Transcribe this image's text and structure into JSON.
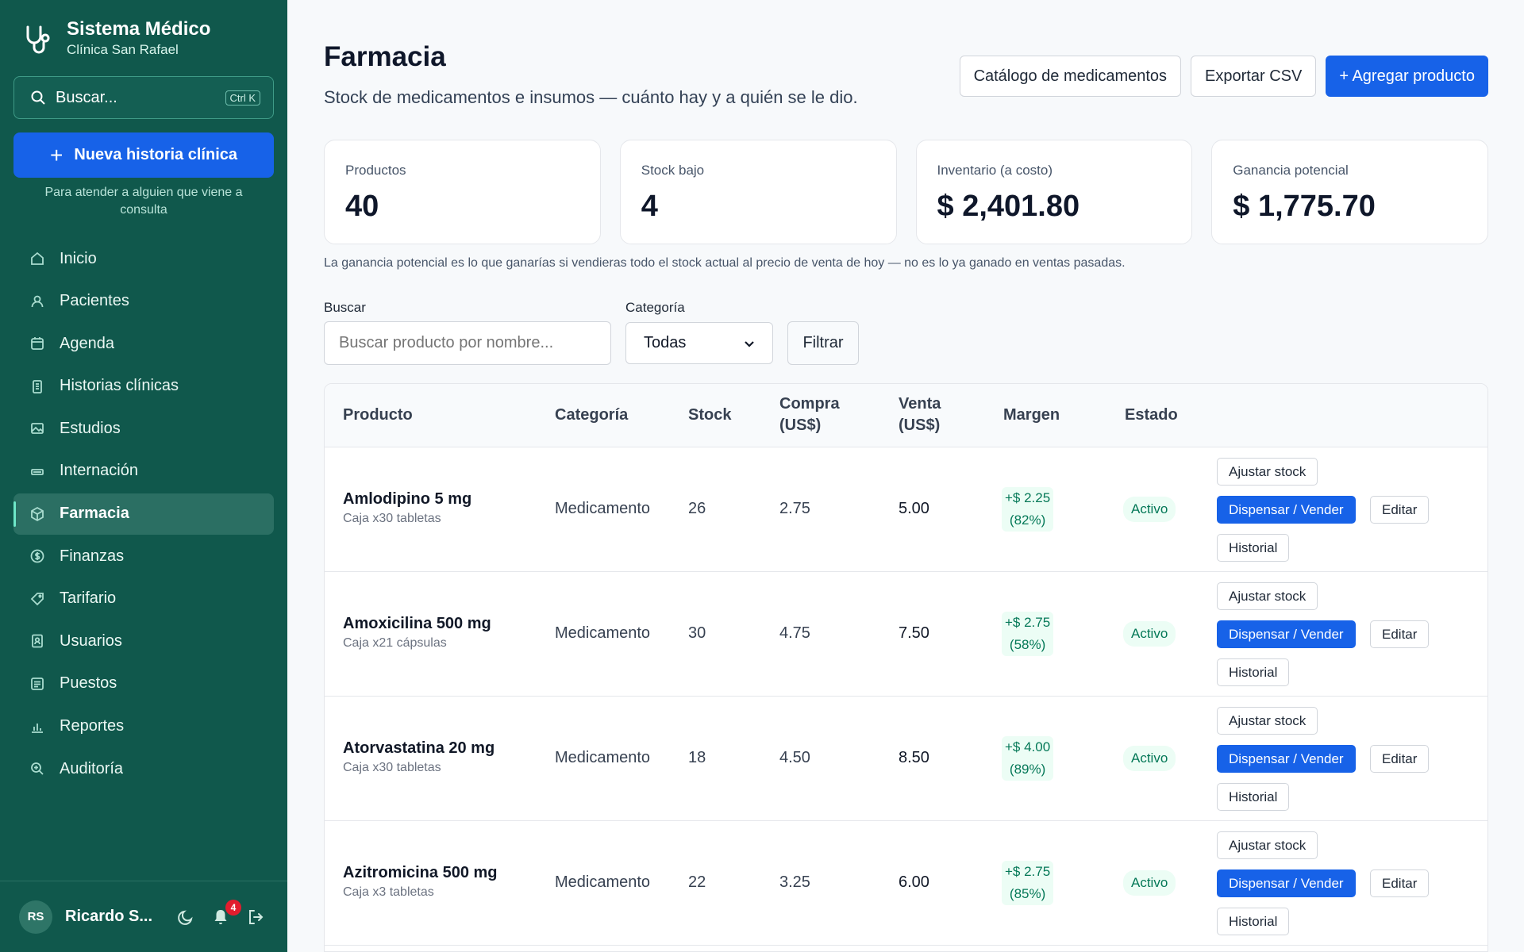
{
  "brand": {
    "title": "Sistema Médico",
    "subtitle": "Clínica San Rafael"
  },
  "sidebar_search": {
    "label": "Buscar...",
    "shortcut": "Ctrl K"
  },
  "new_record": {
    "label": "Nueva historia clínica",
    "hint": "Para atender a alguien que viene a consulta"
  },
  "nav": [
    {
      "label": "Inicio",
      "icon": "home-icon"
    },
    {
      "label": "Pacientes",
      "icon": "user-icon"
    },
    {
      "label": "Agenda",
      "icon": "calendar-icon"
    },
    {
      "label": "Historias clínicas",
      "icon": "clipboard-icon"
    },
    {
      "label": "Estudios",
      "icon": "image-icon"
    },
    {
      "label": "Internación",
      "icon": "bed-icon"
    },
    {
      "label": "Farmacia",
      "icon": "box-icon",
      "active": true
    },
    {
      "label": "Finanzas",
      "icon": "dollar-icon"
    },
    {
      "label": "Tarifario",
      "icon": "tag-icon"
    },
    {
      "label": "Usuarios",
      "icon": "id-badge-icon"
    },
    {
      "label": "Puestos",
      "icon": "list-icon"
    },
    {
      "label": "Reportes",
      "icon": "bar-chart-icon"
    },
    {
      "label": "Auditoría",
      "icon": "magnifier-icon"
    }
  ],
  "user": {
    "initials": "RS",
    "name": "Ricardo S...",
    "notifications": "4"
  },
  "page": {
    "title": "Farmacia",
    "subtitle": "Stock de medicamentos e insumos — cuánto hay y a quién se le dio.",
    "actions": {
      "catalog": "Catálogo de medicamentos",
      "export": "Exportar CSV",
      "add": "+ Agregar producto"
    }
  },
  "stats": [
    {
      "label": "Productos",
      "value": "40"
    },
    {
      "label": "Stock bajo",
      "value": "4"
    },
    {
      "label": "Inventario (a costo)",
      "value": "$ 2,401.80"
    },
    {
      "label": "Ganancia potencial",
      "value": "$ 1,775.70"
    }
  ],
  "note": "La ganancia potencial es lo que ganarías si vendieras todo el stock actual al precio de venta de hoy — no es lo ya ganado en ventas pasadas.",
  "filters": {
    "search_label": "Buscar",
    "search_placeholder": "Buscar producto por nombre...",
    "category_label": "Categoría",
    "category_value": "Todas",
    "filter_button": "Filtrar"
  },
  "table": {
    "headers": {
      "product": "Producto",
      "category": "Categoría",
      "stock": "Stock",
      "buy_1": "Compra",
      "buy_2": "(US$)",
      "sell_1": "Venta",
      "sell_2": "(US$)",
      "margin": "Margen",
      "status": "Estado"
    },
    "actions": {
      "adjust": "Ajustar stock",
      "dispense": "Dispensar / Vender",
      "edit": "Editar",
      "history": "Historial"
    },
    "rows": [
      {
        "name": "Amlodipino 5 mg",
        "presentation": "Caja x30 tabletas",
        "category": "Medicamento",
        "stock": "26",
        "buy": "2.75",
        "sell": "5.00",
        "margin": "+$ 2.25",
        "margin_pct": "(82%)",
        "status": "Activo"
      },
      {
        "name": "Amoxicilina 500 mg",
        "presentation": "Caja x21 cápsulas",
        "category": "Medicamento",
        "stock": "30",
        "buy": "4.75",
        "sell": "7.50",
        "margin": "+$ 2.75",
        "margin_pct": "(58%)",
        "status": "Activo"
      },
      {
        "name": "Atorvastatina 20 mg",
        "presentation": "Caja x30 tabletas",
        "category": "Medicamento",
        "stock": "18",
        "buy": "4.50",
        "sell": "8.50",
        "margin": "+$ 4.00",
        "margin_pct": "(89%)",
        "status": "Activo"
      },
      {
        "name": "Azitromicina 500 mg",
        "presentation": "Caja x3 tabletas",
        "category": "Medicamento",
        "stock": "22",
        "buy": "3.25",
        "sell": "6.00",
        "margin": "+$ 2.75",
        "margin_pct": "(85%)",
        "status": "Activo"
      }
    ]
  }
}
